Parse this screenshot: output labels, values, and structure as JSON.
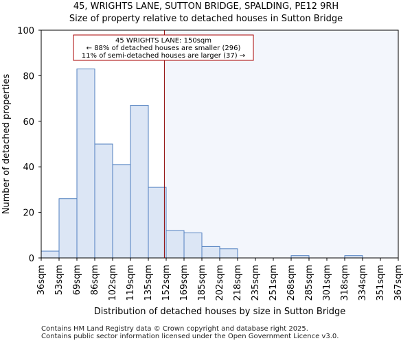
{
  "title_line1": "45, WRIGHTS LANE, SUTTON BRIDGE, SPALDING, PE12 9RH",
  "title_line2": "Size of property relative to detached houses in Sutton Bridge",
  "footer_line1": "Contains HM Land Registry data © Crown copyright and database right 2025.",
  "footer_line2": "Contains public sector information licensed under the Open Government Licence v3.0.",
  "chart_data": {
    "type": "bar",
    "xlabel": "Distribution of detached houses by size in Sutton Bridge",
    "ylabel": "Number of detached properties",
    "ylim": [
      0,
      100
    ],
    "yticks": [
      0,
      20,
      40,
      60,
      80,
      100
    ],
    "bin_edges_labels": [
      "36sqm",
      "53sqm",
      "69sqm",
      "86sqm",
      "102sqm",
      "119sqm",
      "135sqm",
      "152sqm",
      "169sqm",
      "185sqm",
      "202sqm",
      "218sqm",
      "235sqm",
      "251sqm",
      "268sqm",
      "285sqm",
      "301sqm",
      "318sqm",
      "334sqm",
      "351sqm",
      "367sqm"
    ],
    "values": [
      3,
      26,
      83,
      50,
      41,
      67,
      31,
      12,
      11,
      5,
      4,
      0,
      0,
      0,
      1,
      0,
      0,
      1,
      0,
      0
    ],
    "marker_index": 6.9,
    "marker_label": "45 WRIGHTS LANE: 150sqm",
    "annotation_lines": [
      "45 WRIGHTS LANE: 150sqm",
      "← 88% of detached houses are smaller (296)",
      "11% of semi-detached houses are larger (37) →"
    ],
    "colors": {
      "bar_fill": "#dce6f5",
      "bar_stroke": "#4f7fbf",
      "marker": "#8b0000",
      "highlight_bg": "#f3f6fc",
      "annotation_border": "#aa0000"
    }
  }
}
